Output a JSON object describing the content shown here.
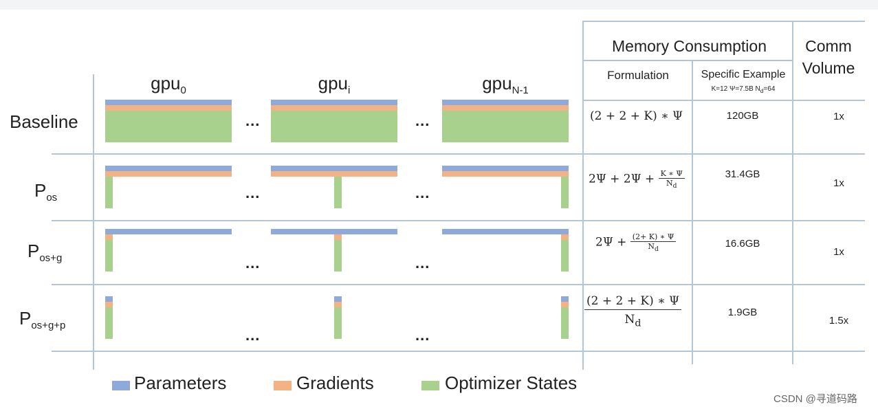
{
  "gpu_headers": [
    {
      "base": "gpu",
      "sub": "0"
    },
    {
      "base": "gpu",
      "sub": "i"
    },
    {
      "base": "gpu",
      "sub": "N-1"
    }
  ],
  "columns": {
    "memory": "Memory Consumption",
    "formulation": "Formulation",
    "specific_example": "Specific Example",
    "example_params": "K=12 Ψ=7.5B N",
    "example_params_sub": "d",
    "example_params_tail": "=64",
    "comm_line1": "Comm",
    "comm_line2": "Volume"
  },
  "rows": [
    {
      "label": "Baseline",
      "sub": "",
      "formula": "(2 + 2 + K) ∗ Ψ",
      "memory": "120GB",
      "comm": "1x",
      "os_share": "full",
      "grad_share": "full",
      "param_share": "full"
    },
    {
      "label": "P",
      "sub": "os",
      "formula_a": "2Ψ + 2Ψ + ",
      "formula_num": "K ∗ Ψ",
      "formula_den": "N",
      "formula_den_sub": "d",
      "memory": "31.4GB",
      "comm": "1x",
      "os_share": "partitioned",
      "grad_share": "full",
      "param_share": "full"
    },
    {
      "label": "P",
      "sub": "os+g",
      "formula_a": "2Ψ + ",
      "formula_num": "(2+ K) ∗ Ψ",
      "formula_den": "N",
      "formula_den_sub": "d",
      "memory": "16.6GB",
      "comm": "1x",
      "os_share": "partitioned",
      "grad_share": "partitioned",
      "param_share": "full"
    },
    {
      "label": "P",
      "sub": "os+g+p",
      "formula_num": "(2 + 2 + K) ∗ Ψ",
      "formula_den": "N",
      "formula_den_sub": "d",
      "memory": "1.9GB",
      "comm": "1.5x",
      "os_share": "partitioned",
      "grad_share": "partitioned",
      "param_share": "partitioned"
    }
  ],
  "ellipsis": "...",
  "legend": [
    {
      "label": "Parameters",
      "color": "#8eaadb"
    },
    {
      "label": "Gradients",
      "color": "#f4b183"
    },
    {
      "label": "Optimizer States",
      "color": "#a9d18e"
    }
  ],
  "colors": {
    "parameters": "#8eaadb",
    "gradients": "#f4b183",
    "optimizer": "#a9d18e",
    "grid": "#b4c6d3"
  },
  "watermark": "CSDN @寻道码路"
}
